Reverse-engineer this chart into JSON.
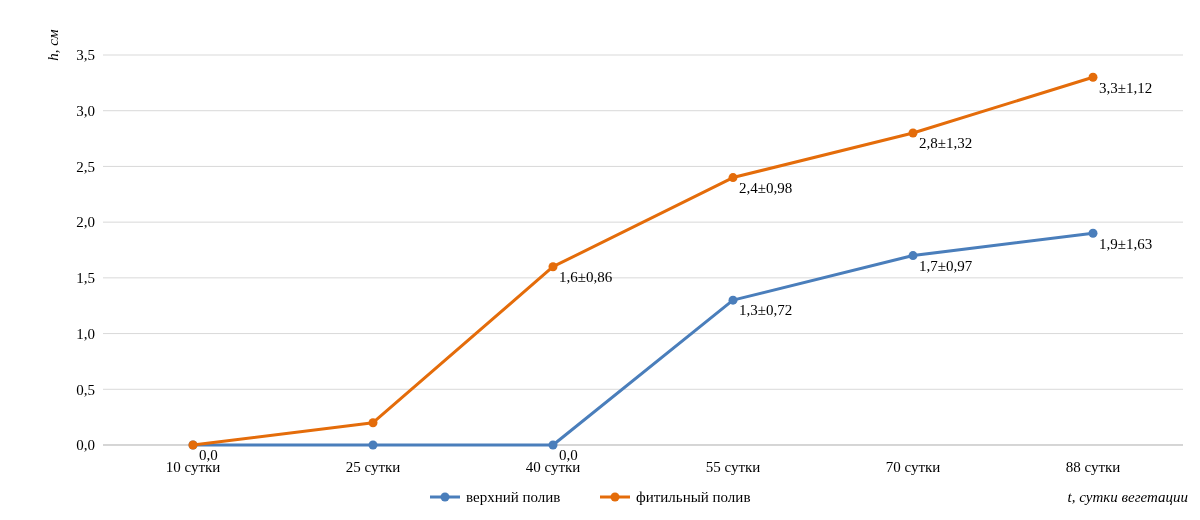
{
  "chart_data": {
    "type": "line",
    "ylabel": "h, см",
    "xlabel": "t, сутки вегетации",
    "categories": [
      "10 сутки",
      "25 сутки",
      "40 сутки",
      "55 сутки",
      "70 сутки",
      "88 сутки"
    ],
    "series": [
      {
        "name": "верхний полив",
        "color": "#4a7ebb",
        "values": [
          0,
          0,
          0,
          1.3,
          1.7,
          1.9
        ],
        "value_labels": [
          null,
          null,
          "0,0",
          "1,3±0,72",
          "1,7±0,97",
          "1,9±1,63"
        ]
      },
      {
        "name": "фитильный полив",
        "color": "#e46c0a",
        "values": [
          0,
          0.2,
          1.6,
          2.4,
          2.8,
          3.3
        ],
        "value_labels": [
          "0,0",
          null,
          "1,6±0,86",
          "2,4±0,98",
          "2,8±1,32",
          "3,3±1,12"
        ]
      }
    ],
    "ylim": [
      0,
      3.5
    ],
    "yticks": [
      {
        "value": 0,
        "label": "0,0"
      },
      {
        "value": 0.5,
        "label": "0,5"
      },
      {
        "value": 1,
        "label": "1,0"
      },
      {
        "value": 1.5,
        "label": "1,5"
      },
      {
        "value": 2,
        "label": "2,0"
      },
      {
        "value": 2.5,
        "label": "2,5"
      },
      {
        "value": 3,
        "label": "3,0"
      },
      {
        "value": 3.5,
        "label": "3,5"
      }
    ],
    "grid": "y",
    "legend": "bottom",
    "marker": "circle",
    "line_style": "solid"
  }
}
